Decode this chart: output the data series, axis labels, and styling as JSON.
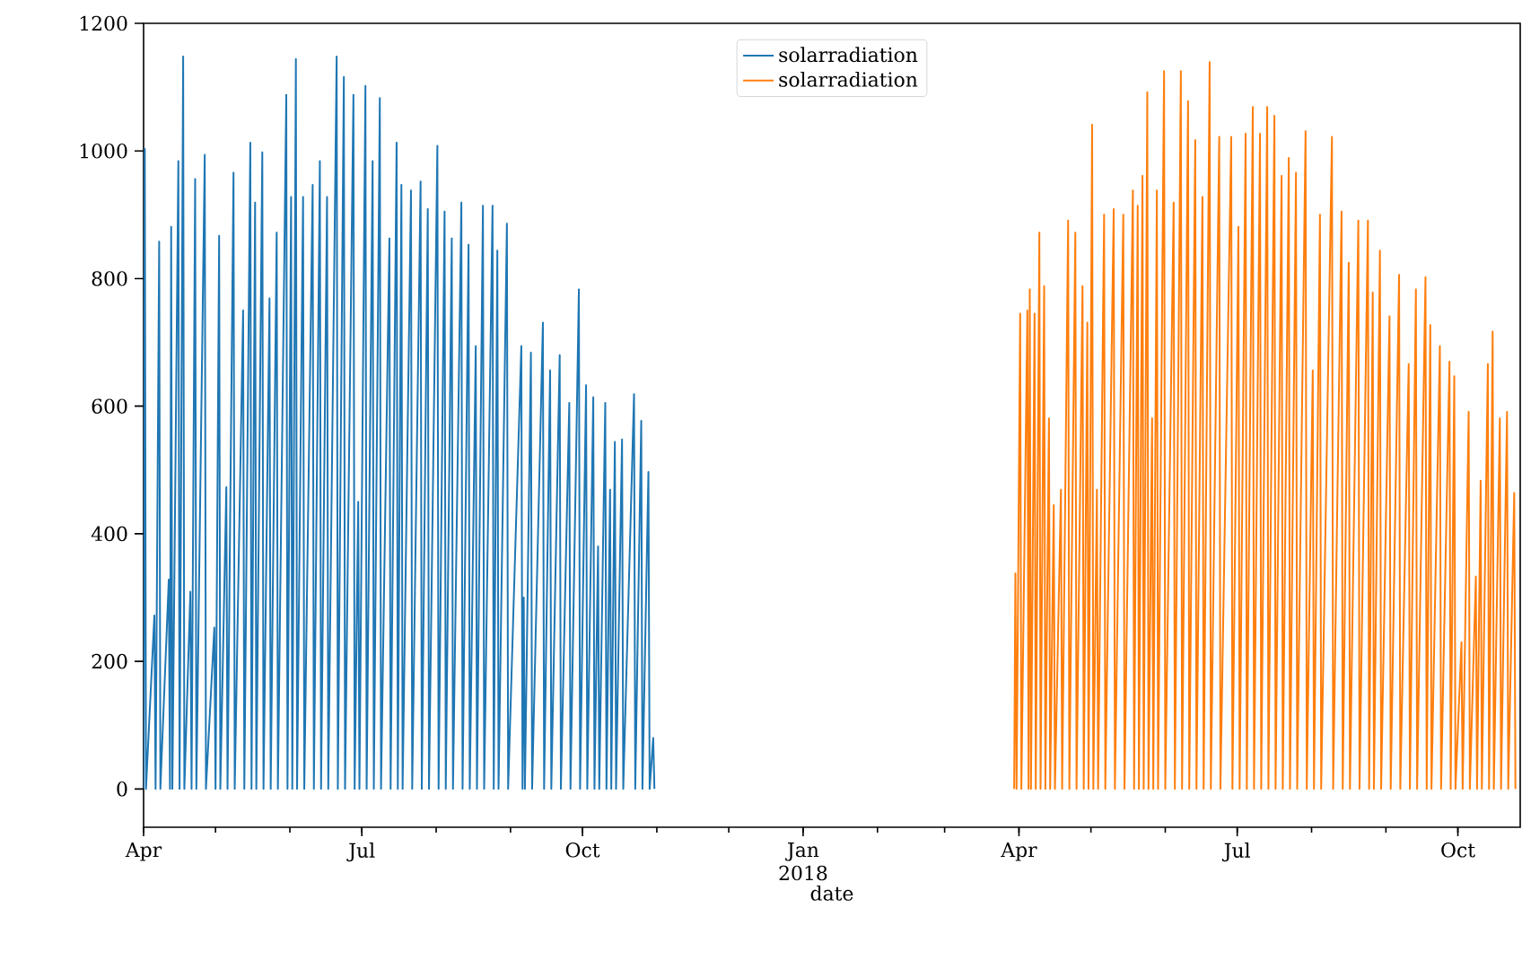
{
  "chart_data": {
    "type": "line",
    "xlabel": "date",
    "xlim": [
      "2017-04-01",
      "2018-10-27"
    ],
    "ylim": [
      -60,
      1200
    ],
    "yticks": [
      0,
      200,
      400,
      600,
      800,
      1000,
      1200
    ],
    "xticks": [
      {
        "value": "2017-04-01",
        "label": "Apr"
      },
      {
        "value": "2017-07-01",
        "label": "Jul"
      },
      {
        "value": "2017-10-01",
        "label": "Oct"
      },
      {
        "value": "2018-01-01",
        "label": "Jan 2018"
      },
      {
        "value": "2018-04-01",
        "label": "Apr"
      },
      {
        "value": "2018-07-01",
        "label": "Jul"
      },
      {
        "value": "2018-10-01",
        "label": "Oct"
      }
    ],
    "legend": "top",
    "marker": "none",
    "line_style": "solid",
    "series": [
      {
        "name": "solarradiation",
        "color": "#1f77b4",
        "x": [
          "2017-04-01",
          "2017-04-01T12:00",
          "2017-04-02",
          "2017-04-05T12:00",
          "2017-04-06",
          "2017-04-07T12:00",
          "2017-04-08",
          "2017-04-11T12:00",
          "2017-04-12",
          "2017-04-12T12:00",
          "2017-04-13",
          "2017-04-15T12:00",
          "2017-04-16",
          "2017-04-17T12:00",
          "2017-04-18",
          "2017-04-20T12:00",
          "2017-04-21",
          "2017-04-22T12:00",
          "2017-04-23",
          "2017-04-26T12:00",
          "2017-04-27",
          "2017-04-30T12:00",
          "2017-05-01",
          "2017-05-02T12:00",
          "2017-05-03",
          "2017-05-05T12:00",
          "2017-05-06",
          "2017-05-08T12:00",
          "2017-05-09",
          "2017-05-12T12:00",
          "2017-05-13",
          "2017-05-15T12:00",
          "2017-05-16",
          "2017-05-17T12:00",
          "2017-05-18",
          "2017-05-20T12:00",
          "2017-05-21",
          "2017-05-23T12:00",
          "2017-05-24",
          "2017-05-26T12:00",
          "2017-05-27",
          "2017-05-30T12:00",
          "2017-05-31",
          "2017-06-01T12:00",
          "2017-06-02",
          "2017-06-03T12:00",
          "2017-06-04",
          "2017-06-06T12:00",
          "2017-06-07",
          "2017-06-10T12:00",
          "2017-06-11",
          "2017-06-13T12:00",
          "2017-06-14",
          "2017-06-16T12:00",
          "2017-06-17",
          "2017-06-20T12:00",
          "2017-06-21",
          "2017-06-23T12:00",
          "2017-06-24",
          "2017-06-27T12:00",
          "2017-06-28",
          "2017-06-29T12:00",
          "2017-06-30",
          "2017-07-02T12:00",
          "2017-07-03",
          "2017-07-05T12:00",
          "2017-07-06",
          "2017-07-08T12:00",
          "2017-07-09",
          "2017-07-12T12:00",
          "2017-07-13",
          "2017-07-15T12:00",
          "2017-07-16",
          "2017-07-17T12:00",
          "2017-07-18",
          "2017-07-21T12:00",
          "2017-07-22",
          "2017-07-25T12:00",
          "2017-07-26",
          "2017-07-28T12:00",
          "2017-07-29",
          "2017-08-01T12:00",
          "2017-08-02",
          "2017-08-04T12:00",
          "2017-08-05",
          "2017-08-07T12:00",
          "2017-08-08",
          "2017-08-11T12:00",
          "2017-08-12",
          "2017-08-14T12:00",
          "2017-08-15",
          "2017-08-17T12:00",
          "2017-08-18",
          "2017-08-20T12:00",
          "2017-08-21",
          "2017-08-24T12:00",
          "2017-08-25",
          "2017-08-26T12:00",
          "2017-08-27",
          "2017-08-30T12:00",
          "2017-08-31",
          "2017-09-05T12:00",
          "2017-09-06",
          "2017-09-06T12:00",
          "2017-09-07",
          "2017-09-09T12:00",
          "2017-09-10",
          "2017-09-14T12:00",
          "2017-09-15",
          "2017-09-17T12:00",
          "2017-09-18",
          "2017-09-21T12:00",
          "2017-09-22",
          "2017-09-25T12:00",
          "2017-09-26",
          "2017-09-29T12:00",
          "2017-09-30",
          "2017-10-02T12:00",
          "2017-10-03",
          "2017-10-05T12:00",
          "2017-10-06",
          "2017-10-07T12:00",
          "2017-10-08",
          "2017-10-10T12:00",
          "2017-10-11",
          "2017-10-12T12:00",
          "2017-10-13",
          "2017-10-14T12:00",
          "2017-10-15",
          "2017-10-17T12:00",
          "2017-10-18",
          "2017-10-22T12:00",
          "2017-10-23",
          "2017-10-25T12:00",
          "2017-10-26",
          "2017-10-28T12:00",
          "2017-10-29",
          "2017-10-30T12:00",
          "2017-10-31"
        ],
        "values": [
          0,
          1003,
          0,
          272,
          0,
          858,
          0,
          328,
          0,
          881,
          0,
          984,
          0,
          1148,
          0,
          309,
          0,
          956,
          0,
          994,
          0,
          253,
          0,
          867,
          0,
          473,
          0,
          966,
          0,
          750,
          0,
          1013,
          0,
          919,
          0,
          998,
          0,
          769,
          0,
          872,
          0,
          1088,
          0,
          928,
          0,
          1144,
          0,
          928,
          0,
          947,
          0,
          984,
          0,
          928,
          0,
          1148,
          0,
          1116,
          0,
          1088,
          0,
          450,
          0,
          1102,
          0,
          984,
          0,
          1083,
          0,
          863,
          0,
          1013,
          0,
          947,
          0,
          938,
          0,
          952,
          0,
          909,
          0,
          1008,
          0,
          905,
          0,
          863,
          0,
          919,
          0,
          853,
          0,
          694,
          0,
          914,
          0,
          914,
          0,
          844,
          0,
          886,
          0,
          694,
          0,
          300,
          0,
          684,
          0,
          731,
          0,
          656,
          0,
          680,
          0,
          605,
          0,
          783,
          0,
          633,
          0,
          614,
          0,
          380,
          0,
          605,
          0,
          469,
          0,
          544,
          0,
          548,
          0,
          619,
          0,
          577,
          0,
          497,
          0,
          80,
          0
        ]
      },
      {
        "name": "solarradiation",
        "color": "#ff7f0e",
        "x": [
          "2018-03-30",
          "2018-03-30T12:00",
          "2018-03-31",
          "2018-04-01T12:00",
          "2018-04-02",
          "2018-04-04T12:00",
          "2018-04-05",
          "2018-04-05T12:00",
          "2018-04-06",
          "2018-04-07T12:00",
          "2018-04-08",
          "2018-04-09T12:00",
          "2018-04-10",
          "2018-04-11T12:00",
          "2018-04-12",
          "2018-04-13T12:00",
          "2018-04-14",
          "2018-04-15T12:00",
          "2018-04-16",
          "2018-04-18T12:00",
          "2018-04-19",
          "2018-04-21T12:00",
          "2018-04-22",
          "2018-04-24T12:00",
          "2018-04-25",
          "2018-04-27T12:00",
          "2018-04-28",
          "2018-04-29T12:00",
          "2018-04-30",
          "2018-05-01T12:00",
          "2018-05-02",
          "2018-05-03T12:00",
          "2018-05-04",
          "2018-05-06T12:00",
          "2018-05-07",
          "2018-05-10T12:00",
          "2018-05-11",
          "2018-05-14T12:00",
          "2018-05-15",
          "2018-05-18T12:00",
          "2018-05-19",
          "2018-05-20T12:00",
          "2018-05-21",
          "2018-05-22T12:00",
          "2018-05-23",
          "2018-05-24T12:00",
          "2018-05-25",
          "2018-05-26T12:00",
          "2018-05-27",
          "2018-05-28T12:00",
          "2018-05-29",
          "2018-05-31T12:00",
          "2018-06-01",
          "2018-06-04T12:00",
          "2018-06-05",
          "2018-06-07T12:00",
          "2018-06-08",
          "2018-06-10T12:00",
          "2018-06-11",
          "2018-06-13T12:00",
          "2018-06-14",
          "2018-06-16T12:00",
          "2018-06-17",
          "2018-06-19T12:00",
          "2018-06-20",
          "2018-06-23T12:00",
          "2018-06-24",
          "2018-06-28T12:00",
          "2018-06-29",
          "2018-07-01T12:00",
          "2018-07-02",
          "2018-07-04T12:00",
          "2018-07-05",
          "2018-07-07T12:00",
          "2018-07-08",
          "2018-07-10T12:00",
          "2018-07-11",
          "2018-07-13T12:00",
          "2018-07-14",
          "2018-07-16T12:00",
          "2018-07-17",
          "2018-07-19T12:00",
          "2018-07-20",
          "2018-07-22T12:00",
          "2018-07-23",
          "2018-07-25T12:00",
          "2018-07-26",
          "2018-07-29T12:00",
          "2018-07-30",
          "2018-08-01T12:00",
          "2018-08-02",
          "2018-08-04T12:00",
          "2018-08-05",
          "2018-08-09T12:00",
          "2018-08-10",
          "2018-08-13T12:00",
          "2018-08-14",
          "2018-08-16T12:00",
          "2018-08-17",
          "2018-08-20T12:00",
          "2018-08-21",
          "2018-08-24T12:00",
          "2018-08-25",
          "2018-08-26T12:00",
          "2018-08-27",
          "2018-08-29T12:00",
          "2018-08-30",
          "2018-09-02T12:00",
          "2018-09-03",
          "2018-09-06T12:00",
          "2018-09-07",
          "2018-09-10T12:00",
          "2018-09-11",
          "2018-09-13T12:00",
          "2018-09-14",
          "2018-09-17T12:00",
          "2018-09-18",
          "2018-09-19T12:00",
          "2018-09-20",
          "2018-09-23T12:00",
          "2018-09-24",
          "2018-09-27T12:00",
          "2018-09-28",
          "2018-09-29T12:00",
          "2018-09-30",
          "2018-10-02T12:00",
          "2018-10-03",
          "2018-10-05T12:00",
          "2018-10-06",
          "2018-10-08T12:00",
          "2018-10-09",
          "2018-10-10T12:00",
          "2018-10-11",
          "2018-10-13T12:00",
          "2018-10-14",
          "2018-10-15T12:00",
          "2018-10-16",
          "2018-10-18T12:00",
          "2018-10-19",
          "2018-10-21T12:00",
          "2018-10-22",
          "2018-10-24T12:00",
          "2018-10-25"
        ],
        "values": [
          0,
          338,
          0,
          745,
          0,
          750,
          0,
          783,
          0,
          745,
          0,
          872,
          0,
          788,
          0,
          581,
          0,
          445,
          0,
          469,
          0,
          891,
          0,
          872,
          0,
          788,
          0,
          731,
          0,
          1041,
          0,
          469,
          0,
          900,
          0,
          909,
          0,
          900,
          0,
          938,
          0,
          914,
          0,
          961,
          0,
          1092,
          0,
          581,
          0,
          938,
          0,
          1125,
          0,
          919,
          0,
          1125,
          0,
          1078,
          0,
          1017,
          0,
          928,
          0,
          1139,
          0,
          1022,
          0,
          1022,
          0,
          881,
          0,
          1027,
          0,
          1069,
          0,
          1027,
          0,
          1069,
          0,
          1055,
          0,
          961,
          0,
          989,
          0,
          966,
          0,
          1031,
          0,
          656,
          0,
          900,
          0,
          1022,
          0,
          905,
          0,
          825,
          0,
          891,
          0,
          891,
          0,
          778,
          0,
          844,
          0,
          741,
          0,
          806,
          0,
          666,
          0,
          783,
          0,
          802,
          0,
          727,
          0,
          694,
          0,
          670,
          0,
          647,
          0,
          230,
          0,
          591,
          0,
          333,
          0,
          483,
          0,
          666,
          0,
          717,
          0,
          581,
          0,
          591,
          0,
          464,
          0
        ]
      }
    ]
  }
}
